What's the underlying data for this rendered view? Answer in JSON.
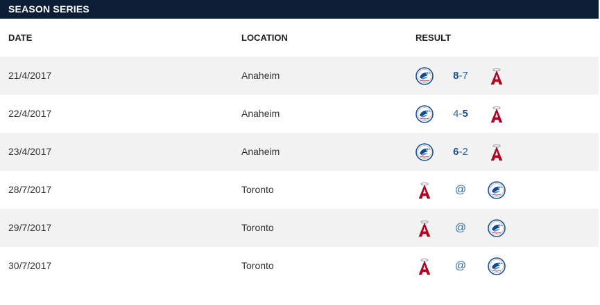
{
  "section": {
    "title": "SEASON SERIES"
  },
  "columns": {
    "date": "DATE",
    "location": "LOCATION",
    "result": "RESULT"
  },
  "colors": {
    "header_bg": "#0b1e36",
    "row_alt": "#f2f2f2",
    "score": "#2a6aa3",
    "jays_blue": "#134a8e",
    "angels_red": "#ba0021"
  },
  "games": [
    {
      "date": "21/4/2017",
      "location": "Anaheim",
      "left_team": "bluejays-logo-icon",
      "right_team": "angels-logo-icon",
      "score_left": "8",
      "sep": "-",
      "score_right": "7",
      "winner": "left"
    },
    {
      "date": "22/4/2017",
      "location": "Anaheim",
      "left_team": "bluejays-logo-icon",
      "right_team": "angels-logo-icon",
      "score_left": "4",
      "sep": "-",
      "score_right": "5",
      "winner": "right"
    },
    {
      "date": "23/4/2017",
      "location": "Anaheim",
      "left_team": "bluejays-logo-icon",
      "right_team": "angels-logo-icon",
      "score_left": "6",
      "sep": "-",
      "score_right": "2",
      "winner": "left"
    },
    {
      "date": "28/7/2017",
      "location": "Toronto",
      "left_team": "angels-logo-icon",
      "right_team": "bluejays-logo-icon",
      "at": "@"
    },
    {
      "date": "29/7/2017",
      "location": "Toronto",
      "left_team": "angels-logo-icon",
      "right_team": "bluejays-logo-icon",
      "at": "@"
    },
    {
      "date": "30/7/2017",
      "location": "Toronto",
      "left_team": "angels-logo-icon",
      "right_team": "bluejays-logo-icon",
      "at": "@"
    }
  ]
}
